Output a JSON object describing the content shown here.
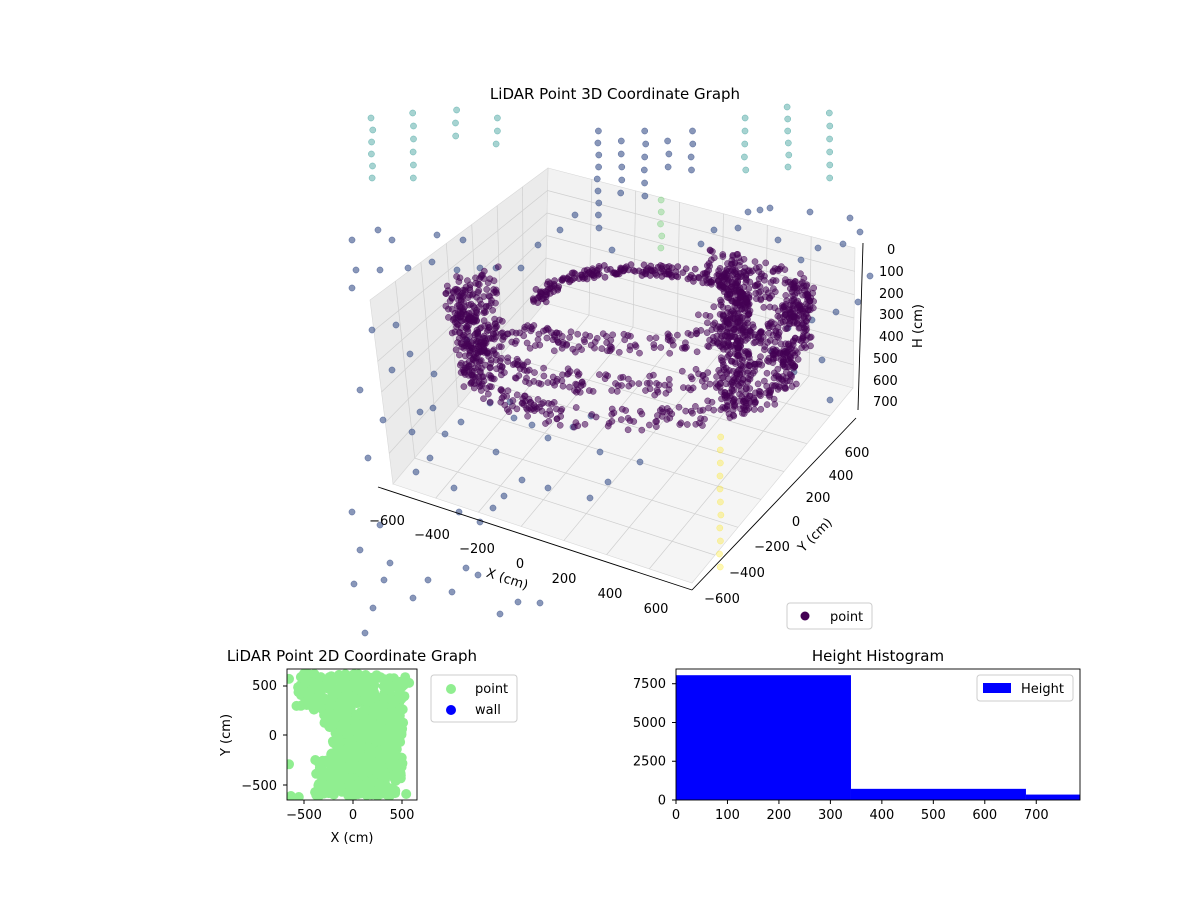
{
  "colors": {
    "viridis_dark": "#440154",
    "viridis_mid": "#3b528b",
    "viridis_teal": "#21918c",
    "viridis_green": "#5ec962",
    "viridis_yellow": "#fde725",
    "scatter2d_point": "#90ee90",
    "wall": "#0000ff",
    "histogram": "#0000ff",
    "pane_back": "#f2f2f2",
    "pane_side": "#ebebeb",
    "grid": "#cfcfcf"
  },
  "chart_data": [
    {
      "type": "scatter",
      "title": "LiDAR Point 3D Coordinate Graph",
      "xlabel": "X (cm)",
      "ylabel": "Y (cm)",
      "zlabel": "H (cm)",
      "x_ticks": [
        "−600",
        "−400",
        "−200",
        "0",
        "200",
        "400",
        "600"
      ],
      "y_ticks": [
        "−600",
        "−400",
        "−200",
        "0",
        "200",
        "400",
        "600"
      ],
      "z_ticks": [
        "0",
        "100",
        "200",
        "300",
        "400",
        "500",
        "600",
        "700"
      ],
      "z_inverted": true,
      "xlim": [
        -700,
        700
      ],
      "ylim": [
        -700,
        700
      ],
      "zlim": [
        0,
        780
      ],
      "colormap": "viridis",
      "legend": [
        "point"
      ],
      "legend_position": "lower-right",
      "grid": true
    },
    {
      "type": "scatter",
      "title": "LiDAR Point 2D Coordinate Graph",
      "xlabel": "X (cm)",
      "ylabel": "Y (cm)",
      "x_ticks": [
        "−500",
        "0",
        "500"
      ],
      "y_ticks": [
        "500",
        "0",
        "−500"
      ],
      "xlim": [
        -680,
        640
      ],
      "ylim": [
        -660,
        660
      ],
      "series": [
        {
          "name": "point",
          "color": "#90ee90"
        },
        {
          "name": "wall",
          "color": "#0000ff"
        }
      ],
      "legend_position": "right-outside"
    },
    {
      "type": "bar",
      "title": "Height Histogram",
      "x_ticks": [
        "0",
        "100",
        "200",
        "300",
        "400",
        "500",
        "600",
        "700"
      ],
      "y_ticks": [
        "0",
        "2500",
        "5000",
        "7500"
      ],
      "xlim": [
        0,
        785
      ],
      "ylim": [
        0,
        8450
      ],
      "bins": [
        {
          "start": 0,
          "end": 340,
          "count": 8050
        },
        {
          "start": 340,
          "end": 680,
          "count": 720
        },
        {
          "start": 680,
          "end": 785,
          "count": 350
        }
      ],
      "series": [
        {
          "name": "Height",
          "color": "#0000ff"
        }
      ],
      "legend_position": "top-right"
    }
  ]
}
